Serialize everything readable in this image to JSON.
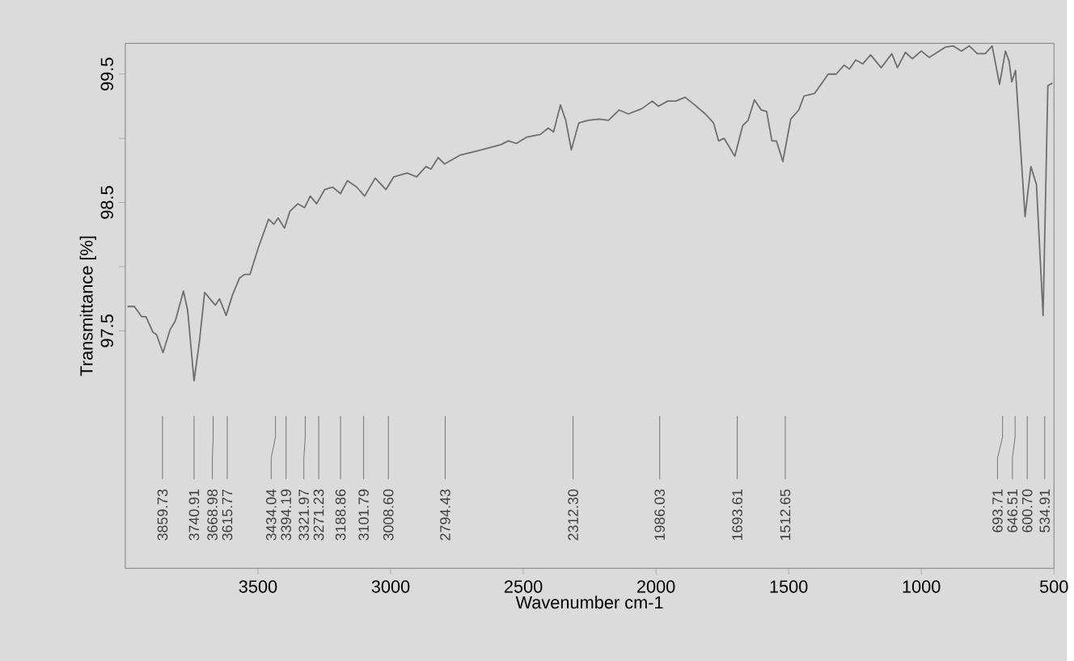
{
  "chart_data": {
    "type": "line",
    "xlabel": "Wavenumber cm-1",
    "ylabel": "Transmittance [%]",
    "xlim": [
      4000,
      500
    ],
    "ylim": [
      95.65,
      99.74
    ],
    "xticks": [
      3500,
      3000,
      2500,
      2000,
      1500,
      1000,
      500
    ],
    "yticks": [
      97.5,
      {
        "value": 98,
        "label": null
      },
      98.5,
      {
        "value": 99,
        "label": null
      },
      99.5
    ],
    "x": [
      3992,
      3966,
      3938,
      3922,
      3896,
      3882,
      3858,
      3831,
      3811,
      3781,
      3765,
      3741,
      3721,
      3701,
      3677,
      3661,
      3645,
      3620,
      3596,
      3570,
      3550,
      3530,
      3500,
      3460,
      3440,
      3424,
      3400,
      3380,
      3350,
      3324,
      3303,
      3279,
      3249,
      3219,
      3189,
      3163,
      3128,
      3098,
      3058,
      3018,
      2988,
      2938,
      2902,
      2867,
      2848,
      2821,
      2797,
      2737,
      2657,
      2586,
      2556,
      2526,
      2486,
      2436,
      2406,
      2386,
      2360,
      2340,
      2319,
      2291,
      2255,
      2215,
      2179,
      2139,
      2104,
      2054,
      2014,
      1991,
      1956,
      1926,
      1890,
      1854,
      1814,
      1783,
      1764,
      1743,
      1703,
      1673,
      1653,
      1629,
      1603,
      1583,
      1563,
      1546,
      1522,
      1492,
      1462,
      1442,
      1402,
      1351,
      1321,
      1291,
      1271,
      1247,
      1221,
      1191,
      1151,
      1111,
      1090,
      1060,
      1034,
      1000,
      970,
      910,
      880,
      849,
      819,
      789,
      759,
      733,
      705,
      683,
      669,
      659,
      645,
      609,
      587,
      566,
      541,
      523,
      506
    ],
    "series": [
      {
        "color": "#6e6e6e",
        "values": [
          97.69,
          97.69,
          97.61,
          97.61,
          97.49,
          97.47,
          97.33,
          97.51,
          97.58,
          97.81,
          97.66,
          97.11,
          97.41,
          97.8,
          97.74,
          97.7,
          97.75,
          97.62,
          97.78,
          97.91,
          97.94,
          97.94,
          98.14,
          98.37,
          98.33,
          98.38,
          98.3,
          98.43,
          98.49,
          98.46,
          98.55,
          98.49,
          98.6,
          98.62,
          98.57,
          98.67,
          98.62,
          98.55,
          98.69,
          98.6,
          98.7,
          98.73,
          98.7,
          98.78,
          98.76,
          98.85,
          98.8,
          98.87,
          98.91,
          98.95,
          98.98,
          98.96,
          99.01,
          99.03,
          99.08,
          99.05,
          99.26,
          99.14,
          98.91,
          99.12,
          99.14,
          99.15,
          99.14,
          99.22,
          99.19,
          99.23,
          99.29,
          99.25,
          99.29,
          99.29,
          99.32,
          99.26,
          99.19,
          99.12,
          98.98,
          99.0,
          98.86,
          99.1,
          99.14,
          99.3,
          99.22,
          99.21,
          98.98,
          98.98,
          98.82,
          99.15,
          99.22,
          99.33,
          99.35,
          99.5,
          99.5,
          99.57,
          99.54,
          99.61,
          99.58,
          99.65,
          99.55,
          99.66,
          99.55,
          99.67,
          99.62,
          99.68,
          99.63,
          99.71,
          99.72,
          99.68,
          99.72,
          99.66,
          99.66,
          99.72,
          99.42,
          99.68,
          99.6,
          99.44,
          99.53,
          98.39,
          98.78,
          98.64,
          97.62,
          99.41,
          99.43
        ]
      }
    ],
    "annotations": [
      {
        "text": "3859.73",
        "x": 3859.73
      },
      {
        "text": "3740.91",
        "x": 3740.91
      },
      {
        "text": "3668.98",
        "x": 3668.98
      },
      {
        "text": "3615.77",
        "x": 3615.77
      },
      {
        "text": "3434.04",
        "x": 3434.04
      },
      {
        "text": "3394.19",
        "x": 3394.19
      },
      {
        "text": "3321.97",
        "x": 3321.97
      },
      {
        "text": "3271.23",
        "x": 3271.23
      },
      {
        "text": "3188.86",
        "x": 3188.86
      },
      {
        "text": "3101.79",
        "x": 3101.79
      },
      {
        "text": "3008.60",
        "x": 3008.6
      },
      {
        "text": "2794.43",
        "x": 2794.43
      },
      {
        "text": "2312.30",
        "x": 2312.3
      },
      {
        "text": "1986.03",
        "x": 1986.03
      },
      {
        "text": "1693.61",
        "x": 1693.61
      },
      {
        "text": "1512.65",
        "x": 1512.65
      },
      {
        "text": "693.71",
        "x": 693.71
      },
      {
        "text": "646.51",
        "x": 646.51
      },
      {
        "text": "600.70",
        "x": 600.7
      },
      {
        "text": "534.91",
        "x": 534.91
      }
    ]
  }
}
